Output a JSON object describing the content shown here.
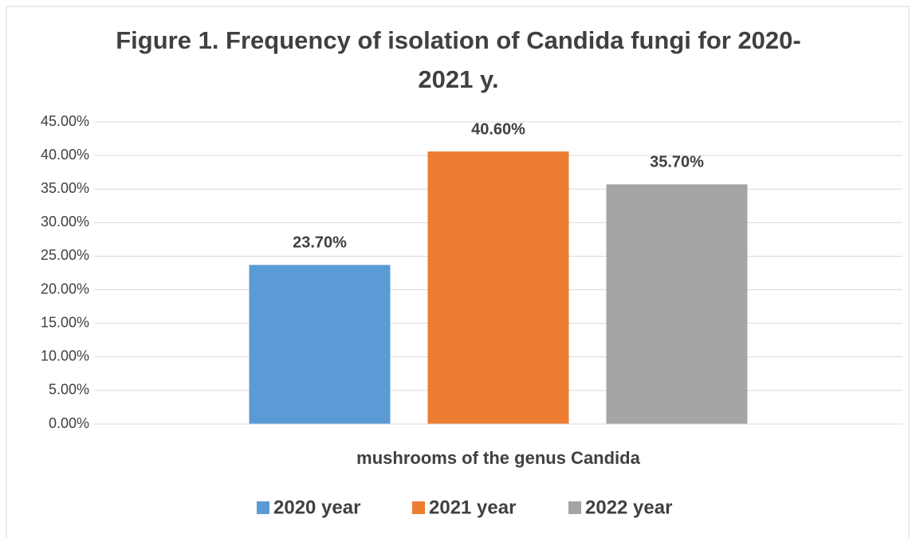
{
  "chart_data": {
    "type": "bar",
    "title": "Figure 1. Frequency of isolation of Candida fungi for 2020-2021 y.",
    "categories": [
      "mushrooms of the genus Candida"
    ],
    "series": [
      {
        "name": "2020 year",
        "color": "#5b9bd5",
        "values": [
          23.7
        ],
        "value_labels": [
          "23.70%"
        ]
      },
      {
        "name": "2021 year",
        "color": "#ed7d31",
        "values": [
          40.6
        ],
        "value_labels": [
          "40.60%"
        ]
      },
      {
        "name": "2022 year",
        "color": "#a5a5a5",
        "values": [
          35.7
        ],
        "value_labels": [
          "35.70%"
        ]
      }
    ],
    "ylim": [
      0,
      45
    ],
    "yticks": [
      {
        "value": 0,
        "label": "0.00%"
      },
      {
        "value": 5,
        "label": "5.00%"
      },
      {
        "value": 10,
        "label": "10.00%"
      },
      {
        "value": 15,
        "label": "15.00%"
      },
      {
        "value": 20,
        "label": "20.00%"
      },
      {
        "value": 25,
        "label": "25.00%"
      },
      {
        "value": 30,
        "label": "30.00%"
      },
      {
        "value": 35,
        "label": "35.00%"
      },
      {
        "value": 40,
        "label": "40.00%"
      },
      {
        "value": 45,
        "label": "45.00%"
      }
    ],
    "grid": true,
    "legend": "bottom"
  }
}
